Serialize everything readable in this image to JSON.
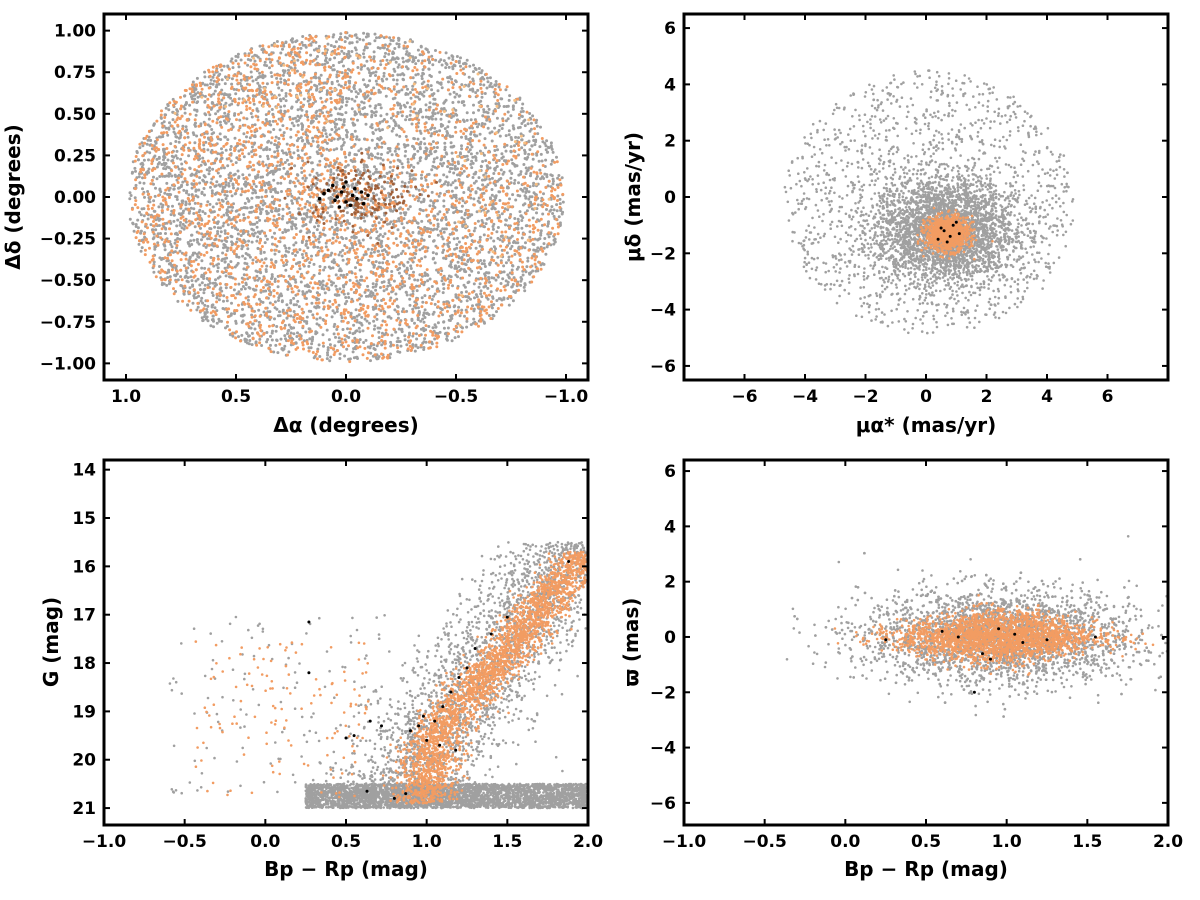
{
  "colors": {
    "field_stars": "#a0a0a0",
    "members": "#f29c62",
    "members_light": "#f7bf82",
    "members_dark": "#a0603a",
    "core": "#000000",
    "frame": "#000000",
    "background": "#ffffff"
  },
  "chart_data": [
    {
      "id": "sky",
      "type": "scatter",
      "title": "",
      "xlabel": "Δα (degrees)",
      "ylabel": "Δδ (degrees)",
      "xlim": [
        1.1,
        -1.1
      ],
      "ylim": [
        -1.1,
        1.1
      ],
      "x_inverted": true,
      "xticks": [
        1.0,
        0.5,
        0.0,
        -0.5,
        -1.0
      ],
      "xtick_labels": [
        "1.0",
        "0.5",
        "0.0",
        "−0.5",
        "−1.0"
      ],
      "yticks": [
        1.0,
        0.75,
        0.5,
        0.25,
        0.0,
        -0.25,
        -0.5,
        -0.75,
        -1.0
      ],
      "ytick_labels": [
        "1.00",
        "0.75",
        "0.50",
        "0.25",
        "0.00",
        "−0.25",
        "−0.50",
        "−0.75",
        "−1.00"
      ],
      "description_of_groups": {
        "field": "uniform within circle of radius ~1.0 deg",
        "members": "concentrated toward positive Δα and negative Δδ, radius ~1.0 deg",
        "core": "compact cluster near (0.0, 0.0), radius ~0.05 deg"
      },
      "annotations": [],
      "series": [
        {
          "points": [
            [
              0.02,
              0.03
            ],
            [
              -0.03,
              0.01
            ],
            [
              0.05,
              -0.02
            ],
            [
              0.01,
              0.06
            ],
            [
              -0.05,
              -0.01
            ],
            [
              0.08,
              0.04
            ],
            [
              -0.02,
              -0.05
            ],
            [
              0.04,
              0.0
            ],
            [
              0.1,
              0.02
            ],
            [
              -0.07,
              0.03
            ],
            [
              0.0,
              -0.03
            ],
            [
              0.06,
              0.07
            ],
            [
              -0.1,
              0.01
            ],
            [
              0.03,
              -0.06
            ],
            [
              -0.04,
              0.05
            ],
            [
              0.12,
              -0.01
            ],
            [
              0.0,
              0.09
            ],
            [
              -0.08,
              -0.04
            ]
          ]
        }
      ]
    },
    {
      "id": "pm",
      "type": "scatter",
      "title": "",
      "xlabel": "μα* (mas/yr)",
      "ylabel": "μδ (mas/yr)",
      "xlim": [
        -8,
        8
      ],
      "ylim": [
        -6.5,
        6.5
      ],
      "xticks": [
        -6,
        -4,
        -2,
        0,
        2,
        4,
        6
      ],
      "xtick_labels": [
        "−6",
        "−4",
        "−2",
        "0",
        "2",
        "4",
        "6"
      ],
      "yticks": [
        6,
        4,
        2,
        0,
        -2,
        -4,
        -6
      ],
      "ytick_labels": [
        "6",
        "4",
        "2",
        "0",
        "−2",
        "−4",
        "−6"
      ],
      "description_of_groups": {
        "field": "dense core near (0.6, -1.2) mas/yr with sparse halo out to ~5 mas/yr",
        "members": "compact clump near (0.7, -1.3) mas/yr, radius ~0.8",
        "core": "few points near (0.8, -1.3) mas/yr"
      },
      "series": [
        {
          "points": [
            [
              0.6,
              -1.2
            ],
            [
              0.9,
              -1.0
            ],
            [
              0.4,
              -1.5
            ],
            [
              1.1,
              -1.3
            ],
            [
              0.7,
              -1.6
            ],
            [
              1.0,
              -0.9
            ],
            [
              0.5,
              -1.1
            ],
            [
              0.8,
              -1.4
            ]
          ]
        }
      ]
    },
    {
      "id": "cmd",
      "type": "scatter",
      "title": "",
      "xlabel": "Bp − Rp (mag)",
      "ylabel": "G (mag)",
      "xlim": [
        -1.0,
        2.0
      ],
      "ylim": [
        21.35,
        13.8
      ],
      "y_inverted": true,
      "xticks": [
        -1.0,
        -0.5,
        0.0,
        0.5,
        1.0,
        1.5,
        2.0
      ],
      "xtick_labels": [
        "−1.0",
        "−0.5",
        "0.0",
        "0.5",
        "1.0",
        "1.5",
        "2.0"
      ],
      "yticks": [
        21,
        20,
        19,
        18,
        17,
        16,
        15,
        14
      ],
      "ytick_labels": [
        "21",
        "20",
        "19",
        "18",
        "17",
        "16",
        "15",
        "14"
      ],
      "description_of_groups": {
        "field": "broad band near G≈20.5–21, color 0.2–2.0, plus diffuse sequence",
        "members": "main sequence from (0.9, 19.8) through (1.2, 18.2) to (1.9, 15.8)",
        "core": "scattered along sequence"
      },
      "series": [
        {
          "points": [
            [
              0.8,
              20.8
            ],
            [
              0.87,
              20.7
            ],
            [
              0.9,
              19.4
            ],
            [
              0.95,
              19.3
            ],
            [
              0.98,
              19.1
            ],
            [
              1.0,
              19.6
            ],
            [
              1.05,
              19.2
            ],
            [
              1.08,
              19.7
            ],
            [
              1.1,
              18.9
            ],
            [
              1.15,
              18.6
            ],
            [
              1.2,
              18.3
            ],
            [
              1.25,
              18.1
            ],
            [
              1.3,
              17.7
            ],
            [
              1.4,
              17.4
            ],
            [
              0.55,
              19.5
            ],
            [
              0.5,
              19.55
            ],
            [
              0.27,
              18.2
            ],
            [
              0.27,
              17.15
            ],
            [
              1.5,
              17.05
            ],
            [
              1.88,
              15.9
            ],
            [
              1.18,
              19.8
            ],
            [
              0.63,
              20.65
            ],
            [
              0.65,
              19.2
            ],
            [
              0.72,
              19.3
            ]
          ]
        }
      ]
    },
    {
      "id": "parallax",
      "type": "scatter",
      "title": "",
      "xlabel": "Bp − Rp (mag)",
      "ylabel": "ϖ (mas)",
      "xlim": [
        -1.0,
        2.0
      ],
      "ylim": [
        -6.8,
        6.4
      ],
      "xticks": [
        -1.0,
        -0.5,
        0.0,
        0.5,
        1.0,
        1.5,
        2.0
      ],
      "xtick_labels": [
        "−1.0",
        "−0.5",
        "0.0",
        "0.5",
        "1.0",
        "1.5",
        "2.0"
      ],
      "yticks": [
        6,
        4,
        2,
        0,
        -2,
        -4,
        -6
      ],
      "ytick_labels": [
        "6",
        "4",
        "2",
        "0",
        "−2",
        "−4",
        "−6"
      ],
      "description_of_groups": {
        "field": "wide spread centered on parallax ~0 for color 0.3–2.0",
        "members": "tight band near parallax 0, color 0.6–1.9",
        "core": "near parallax 0"
      },
      "series": [
        {
          "points": [
            [
              0.85,
              -0.6
            ],
            [
              0.9,
              -0.8
            ],
            [
              0.8,
              -2.0
            ],
            [
              1.05,
              0.1
            ],
            [
              1.1,
              -0.2
            ],
            [
              0.7,
              0.0
            ],
            [
              1.25,
              -0.1
            ],
            [
              1.55,
              0.0
            ],
            [
              1.97,
              -0.05
            ],
            [
              0.95,
              0.3
            ],
            [
              0.6,
              0.2
            ],
            [
              0.25,
              -0.1
            ]
          ]
        }
      ]
    }
  ]
}
